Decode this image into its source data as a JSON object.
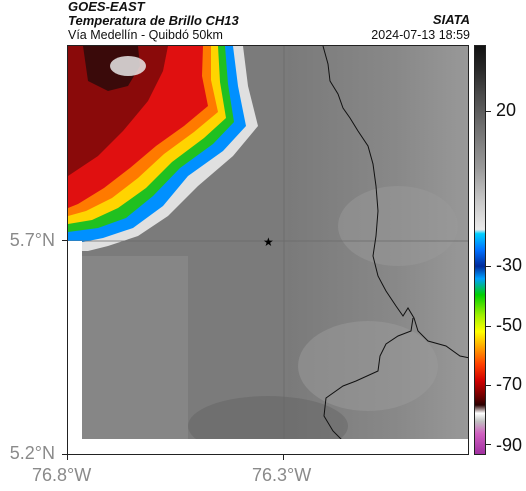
{
  "header": {
    "satellite": "GOES-EAST",
    "product": "Temperatura de Brillo CH13",
    "route": "Vía Medellín - Quibdó 50km",
    "brand": "SIATA",
    "timestamp": "2024-07-13 18:59"
  },
  "map": {
    "lat_ticks": [
      "5.7°N",
      "5.2°N"
    ],
    "lon_ticks": [
      "76.8°W",
      "76.3°W"
    ],
    "marker": "star"
  },
  "colorbar": {
    "labels": [
      "20",
      "-30",
      "-50",
      "-70",
      "-90"
    ]
  },
  "colors": {
    "cloud_cold": "#c00000",
    "cloud_mid": "#ffd000",
    "cloud_edge": "#00c0ff",
    "background_gray": "#7a7a7a"
  }
}
